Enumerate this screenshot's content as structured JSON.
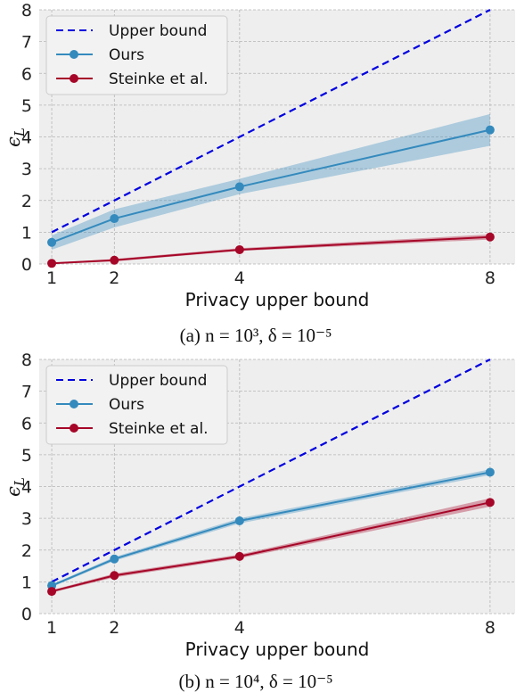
{
  "chart_data": [
    {
      "type": "line",
      "caption": "(a) n = 10³, δ = 10⁻⁵",
      "xlabel": "Privacy upper bound",
      "ylabel": "ϵL",
      "x": [
        1,
        2,
        4,
        8
      ],
      "xticks": [
        "1",
        "2",
        "4",
        "8"
      ],
      "yticks": [
        "0",
        "1",
        "2",
        "3",
        "4",
        "5",
        "6",
        "7",
        "8"
      ],
      "xlim": [
        0.8,
        8.4
      ],
      "ylim": [
        0,
        8
      ],
      "grid": true,
      "legend_position": "top-left",
      "series": [
        {
          "name": "Upper bound",
          "style": "dashed",
          "color": "#0000e0",
          "values": [
            1,
            2,
            4,
            8
          ]
        },
        {
          "name": "Ours",
          "style": "line-marker",
          "color": "#348abd",
          "values": [
            0.68,
            1.43,
            2.43,
            4.22
          ],
          "lower": [
            0.45,
            1.15,
            2.2,
            3.72
          ],
          "upper": [
            0.9,
            1.72,
            2.68,
            4.72
          ]
        },
        {
          "name": "Steinke et al.",
          "style": "line-marker",
          "color": "#a60628",
          "values": [
            0.02,
            0.12,
            0.45,
            0.85
          ],
          "lower": [
            0.0,
            0.08,
            0.41,
            0.77
          ],
          "upper": [
            0.04,
            0.16,
            0.5,
            0.93
          ]
        }
      ]
    },
    {
      "type": "line",
      "caption": "(b) n = 10⁴, δ = 10⁻⁵",
      "xlabel": "Privacy upper bound",
      "ylabel": "ϵL",
      "x": [
        1,
        2,
        4,
        8
      ],
      "xticks": [
        "1",
        "2",
        "4",
        "8"
      ],
      "yticks": [
        "0",
        "1",
        "2",
        "3",
        "4",
        "5",
        "6",
        "7",
        "8"
      ],
      "xlim": [
        0.8,
        8.4
      ],
      "ylim": [
        0,
        8
      ],
      "grid": true,
      "legend_position": "top-left",
      "series": [
        {
          "name": "Upper bound",
          "style": "dashed",
          "color": "#0000e0",
          "values": [
            1,
            2,
            4,
            8
          ]
        },
        {
          "name": "Ours",
          "style": "line-marker",
          "color": "#348abd",
          "values": [
            0.88,
            1.72,
            2.92,
            4.45
          ],
          "lower": [
            0.84,
            1.66,
            2.84,
            4.36
          ],
          "upper": [
            0.92,
            1.78,
            3.0,
            4.54
          ]
        },
        {
          "name": "Steinke et al.",
          "style": "line-marker",
          "color": "#a60628",
          "values": [
            0.7,
            1.2,
            1.8,
            3.5
          ],
          "lower": [
            0.66,
            1.14,
            1.74,
            3.37
          ],
          "upper": [
            0.74,
            1.26,
            1.86,
            3.63
          ]
        }
      ]
    }
  ]
}
